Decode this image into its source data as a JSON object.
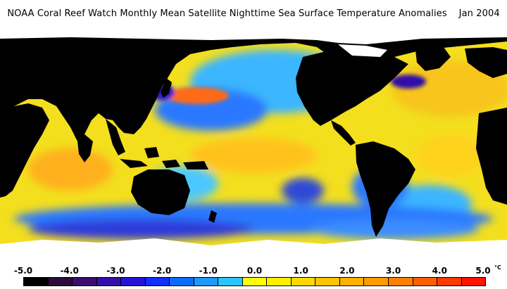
{
  "title": "NOAA Coral Reef Watch Monthly Mean Satellite Nighttime Sea Surface Temperature Anomalies    Jan 2004",
  "colors": {
    "land": "#000000",
    "ice": "#ffffff",
    "ocean_base": "#f3df1e",
    "warm": "#ffa11a",
    "hot": "#ff4a12",
    "neutral": "#4cc8ff",
    "cool": "#2a78ff",
    "cold": "#2f1ac8"
  },
  "legend": {
    "ticks": [
      "-5.0",
      "-4.0",
      "-3.0",
      "-2.0",
      "-1.0",
      "0.0",
      "1.0",
      "2.0",
      "3.0",
      "4.0",
      "5.0"
    ],
    "unit": "°C",
    "swatches": [
      "#000000",
      "#2b0b3c",
      "#3a0c6e",
      "#3310a8",
      "#2313d6",
      "#0f30ff",
      "#0a6cff",
      "#1e98ff",
      "#29c5ff",
      "#ffff00",
      "#fff000",
      "#ffd800",
      "#ffc400",
      "#ffb000",
      "#ff9a00",
      "#ff8000",
      "#ff5f00",
      "#ff3a00",
      "#ff1400"
    ]
  }
}
